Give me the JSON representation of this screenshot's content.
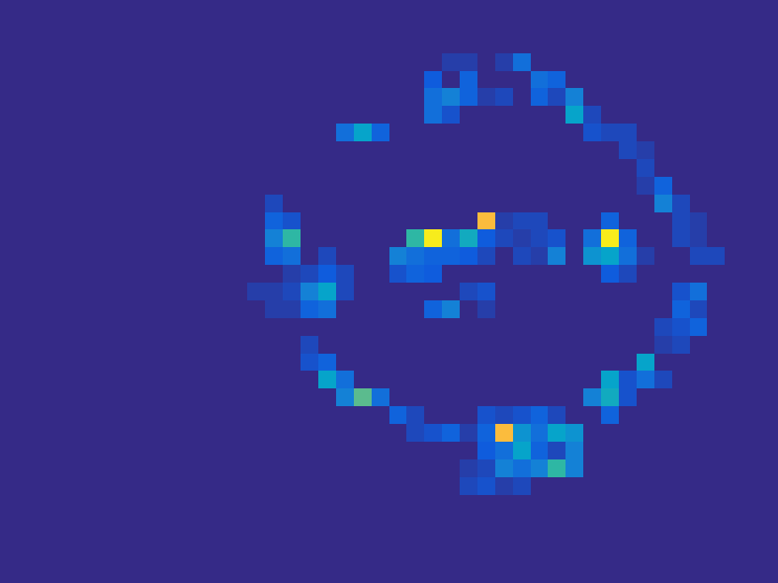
{
  "chart_data": {
    "type": "heatmap",
    "tick_labels": false,
    "zlim": [
      0,
      1
    ],
    "cells": [
      [
        0,
        0,
        0,
        0,
        0,
        0,
        0,
        0,
        0,
        0,
        0,
        0,
        0,
        0,
        0,
        0,
        0,
        0,
        0,
        0,
        0,
        0,
        0,
        0,
        0,
        0,
        0,
        0,
        0,
        0,
        0,
        0,
        0,
        0,
        0,
        0,
        0,
        0,
        0,
        0,
        0,
        0,
        0,
        0
      ],
      [
        0,
        0,
        0,
        0,
        0,
        0,
        0,
        0,
        0,
        0,
        0,
        0,
        0,
        0,
        0,
        0,
        0,
        0,
        0,
        0,
        0,
        0,
        0,
        0,
        0,
        0,
        0,
        0,
        0,
        0,
        0,
        0,
        0,
        0,
        0,
        0,
        0,
        0,
        0,
        0,
        0,
        0,
        0,
        0
      ],
      [
        0,
        0,
        0,
        0,
        0,
        0,
        0,
        0,
        0,
        0,
        0,
        0,
        0,
        0,
        0,
        0,
        0,
        0,
        0,
        0,
        0,
        0,
        0,
        0,
        0,
        0,
        0,
        0,
        0,
        0,
        0,
        0,
        0,
        0,
        0,
        0,
        0,
        0,
        0,
        0,
        0,
        0,
        0,
        0
      ],
      [
        0,
        0,
        0,
        0,
        0,
        0,
        0,
        0,
        0,
        0,
        0,
        0,
        0,
        0,
        0,
        0,
        0,
        0,
        0,
        0,
        0,
        0,
        0,
        0,
        0,
        0.04,
        0.04,
        0,
        0.04,
        0.15,
        0,
        0,
        0,
        0,
        0,
        0,
        0,
        0,
        0,
        0,
        0,
        0,
        0,
        0
      ],
      [
        0,
        0,
        0,
        0,
        0,
        0,
        0,
        0,
        0,
        0,
        0,
        0,
        0,
        0,
        0,
        0,
        0,
        0,
        0,
        0,
        0,
        0,
        0,
        0,
        0.1,
        0,
        0.12,
        0,
        0,
        0,
        0.15,
        0.12,
        0,
        0,
        0,
        0,
        0,
        0,
        0,
        0,
        0,
        0,
        0,
        0
      ],
      [
        0,
        0,
        0,
        0,
        0,
        0,
        0,
        0,
        0,
        0,
        0,
        0,
        0,
        0,
        0,
        0,
        0,
        0,
        0,
        0,
        0,
        0,
        0,
        0,
        0.15,
        0.2,
        0.12,
        0.04,
        0.06,
        0,
        0.12,
        0.06,
        0.2,
        0,
        0,
        0,
        0,
        0,
        0,
        0,
        0,
        0,
        0,
        0
      ],
      [
        0,
        0,
        0,
        0,
        0,
        0,
        0,
        0,
        0,
        0,
        0,
        0,
        0,
        0,
        0,
        0,
        0,
        0,
        0,
        0,
        0,
        0,
        0,
        0,
        0.15,
        0.08,
        0,
        0,
        0,
        0,
        0,
        0,
        0.3,
        0.06,
        0,
        0,
        0,
        0,
        0,
        0,
        0,
        0,
        0,
        0
      ],
      [
        0,
        0,
        0,
        0,
        0,
        0,
        0,
        0,
        0,
        0,
        0,
        0,
        0,
        0,
        0,
        0,
        0,
        0,
        0,
        0.15,
        0.3,
        0.12,
        0,
        0,
        0,
        0,
        0,
        0,
        0,
        0,
        0,
        0,
        0,
        0.08,
        0.06,
        0.06,
        0,
        0,
        0,
        0,
        0,
        0,
        0,
        0
      ],
      [
        0,
        0,
        0,
        0,
        0,
        0,
        0,
        0,
        0,
        0,
        0,
        0,
        0,
        0,
        0,
        0,
        0,
        0,
        0,
        0,
        0,
        0,
        0,
        0,
        0,
        0,
        0,
        0,
        0,
        0,
        0,
        0,
        0,
        0,
        0,
        0.06,
        0.04,
        0,
        0,
        0,
        0,
        0,
        0,
        0
      ],
      [
        0,
        0,
        0,
        0,
        0,
        0,
        0,
        0,
        0,
        0,
        0,
        0,
        0,
        0,
        0,
        0,
        0,
        0,
        0,
        0,
        0,
        0,
        0,
        0,
        0,
        0,
        0,
        0,
        0,
        0,
        0,
        0,
        0,
        0,
        0,
        0,
        0.06,
        0,
        0,
        0,
        0,
        0,
        0,
        0
      ],
      [
        0,
        0,
        0,
        0,
        0,
        0,
        0,
        0,
        0,
        0,
        0,
        0,
        0,
        0,
        0,
        0,
        0,
        0,
        0,
        0,
        0,
        0,
        0,
        0,
        0,
        0,
        0,
        0,
        0,
        0,
        0,
        0,
        0,
        0,
        0,
        0,
        0.04,
        0.12,
        0,
        0,
        0,
        0,
        0,
        0
      ],
      [
        0,
        0,
        0,
        0,
        0,
        0,
        0,
        0,
        0,
        0,
        0,
        0,
        0,
        0,
        0,
        0.06,
        0,
        0,
        0,
        0,
        0,
        0,
        0,
        0,
        0,
        0,
        0,
        0,
        0,
        0,
        0,
        0,
        0,
        0,
        0,
        0,
        0,
        0.2,
        0.06,
        0,
        0,
        0,
        0,
        0
      ],
      [
        0,
        0,
        0,
        0,
        0,
        0,
        0,
        0,
        0,
        0,
        0,
        0,
        0,
        0,
        0,
        0.12,
        0.08,
        0,
        0,
        0,
        0,
        0,
        0,
        0,
        0,
        0,
        0,
        0.8,
        0.04,
        0.06,
        0.06,
        0,
        0,
        0,
        0.12,
        0,
        0,
        0,
        0.06,
        0.04,
        0,
        0,
        0,
        0
      ],
      [
        0,
        0,
        0,
        0,
        0,
        0,
        0,
        0,
        0,
        0,
        0,
        0,
        0,
        0,
        0,
        0.2,
        0.4,
        0,
        0,
        0,
        0,
        0,
        0,
        0.4,
        0.95,
        0.15,
        0.33,
        0.1,
        0.06,
        0.04,
        0.06,
        0.08,
        0,
        0.15,
        0.95,
        0.12,
        0,
        0,
        0.06,
        0.04,
        0,
        0,
        0,
        0
      ],
      [
        0,
        0,
        0,
        0,
        0,
        0,
        0,
        0,
        0,
        0,
        0,
        0,
        0,
        0,
        0,
        0.12,
        0.15,
        0,
        0.06,
        0,
        0,
        0,
        0.2,
        0.15,
        0.12,
        0.12,
        0.1,
        0.06,
        0,
        0.06,
        0.04,
        0.2,
        0,
        0.25,
        0.3,
        0.15,
        0.04,
        0,
        0,
        0.06,
        0.06,
        0,
        0,
        0
      ],
      [
        0,
        0,
        0,
        0,
        0,
        0,
        0,
        0,
        0,
        0,
        0,
        0,
        0,
        0,
        0,
        0,
        0.04,
        0.06,
        0.1,
        0.06,
        0,
        0,
        0.08,
        0.12,
        0.1,
        0,
        0,
        0,
        0,
        0,
        0,
        0,
        0,
        0,
        0.1,
        0.06,
        0,
        0,
        0,
        0,
        0,
        0,
        0,
        0
      ],
      [
        0,
        0,
        0,
        0,
        0,
        0,
        0,
        0,
        0,
        0,
        0,
        0,
        0,
        0,
        0.04,
        0.04,
        0.06,
        0.2,
        0.3,
        0.06,
        0,
        0,
        0,
        0,
        0,
        0,
        0.06,
        0.08,
        0,
        0,
        0,
        0,
        0,
        0,
        0,
        0,
        0,
        0,
        0.08,
        0.15,
        0,
        0,
        0,
        0
      ],
      [
        0,
        0,
        0,
        0,
        0,
        0,
        0,
        0,
        0,
        0,
        0,
        0,
        0,
        0,
        0,
        0.04,
        0.04,
        0.12,
        0.15,
        0,
        0,
        0,
        0,
        0,
        0.12,
        0.2,
        0,
        0.04,
        0,
        0,
        0,
        0,
        0,
        0,
        0,
        0,
        0,
        0,
        0.12,
        0.06,
        0,
        0,
        0,
        0
      ],
      [
        0,
        0,
        0,
        0,
        0,
        0,
        0,
        0,
        0,
        0,
        0,
        0,
        0,
        0,
        0,
        0,
        0,
        0,
        0,
        0,
        0,
        0,
        0,
        0,
        0,
        0,
        0,
        0,
        0,
        0,
        0,
        0,
        0,
        0,
        0,
        0,
        0,
        0.06,
        0.08,
        0.12,
        0,
        0,
        0,
        0
      ],
      [
        0,
        0,
        0,
        0,
        0,
        0,
        0,
        0,
        0,
        0,
        0,
        0,
        0,
        0,
        0,
        0,
        0,
        0.06,
        0,
        0,
        0,
        0,
        0,
        0,
        0,
        0,
        0,
        0,
        0,
        0,
        0,
        0,
        0,
        0,
        0,
        0,
        0,
        0.04,
        0.06,
        0,
        0,
        0,
        0,
        0
      ],
      [
        0,
        0,
        0,
        0,
        0,
        0,
        0,
        0,
        0,
        0,
        0,
        0,
        0,
        0,
        0,
        0,
        0,
        0.08,
        0.12,
        0,
        0,
        0,
        0,
        0,
        0,
        0,
        0,
        0,
        0,
        0,
        0,
        0,
        0,
        0,
        0,
        0,
        0.3,
        0,
        0,
        0,
        0,
        0,
        0,
        0
      ],
      [
        0,
        0,
        0,
        0,
        0,
        0,
        0,
        0,
        0,
        0,
        0,
        0,
        0,
        0,
        0,
        0,
        0,
        0,
        0.3,
        0.15,
        0,
        0,
        0,
        0,
        0,
        0,
        0,
        0,
        0,
        0,
        0,
        0,
        0,
        0,
        0.3,
        0.08,
        0.15,
        0.06,
        0,
        0,
        0,
        0,
        0,
        0
      ],
      [
        0,
        0,
        0,
        0,
        0,
        0,
        0,
        0,
        0,
        0,
        0,
        0,
        0,
        0,
        0,
        0,
        0,
        0,
        0,
        0.2,
        0.45,
        0.15,
        0,
        0,
        0,
        0,
        0,
        0,
        0,
        0,
        0,
        0,
        0,
        0.2,
        0.33,
        0.08,
        0,
        0,
        0,
        0,
        0,
        0,
        0,
        0
      ],
      [
        0,
        0,
        0,
        0,
        0,
        0,
        0,
        0,
        0,
        0,
        0,
        0,
        0,
        0,
        0,
        0,
        0,
        0,
        0,
        0,
        0,
        0,
        0.12,
        0.06,
        0,
        0,
        0,
        0.08,
        0.06,
        0.08,
        0.12,
        0.06,
        0,
        0,
        0.12,
        0,
        0,
        0,
        0,
        0,
        0,
        0,
        0,
        0
      ],
      [
        0,
        0,
        0,
        0,
        0,
        0,
        0,
        0,
        0,
        0,
        0,
        0,
        0,
        0,
        0,
        0,
        0,
        0,
        0,
        0,
        0,
        0,
        0,
        0.06,
        0.08,
        0.12,
        0.04,
        0.12,
        0.8,
        0.25,
        0.15,
        0.3,
        0.25,
        0,
        0,
        0,
        0,
        0,
        0,
        0,
        0,
        0,
        0,
        0
      ],
      [
        0,
        0,
        0,
        0,
        0,
        0,
        0,
        0,
        0,
        0,
        0,
        0,
        0,
        0,
        0,
        0,
        0,
        0,
        0,
        0,
        0,
        0,
        0,
        0,
        0,
        0,
        0,
        0.1,
        0.15,
        0.3,
        0.12,
        0.06,
        0.2,
        0,
        0,
        0,
        0,
        0,
        0,
        0,
        0,
        0,
        0,
        0
      ],
      [
        0,
        0,
        0,
        0,
        0,
        0,
        0,
        0,
        0,
        0,
        0,
        0,
        0,
        0,
        0,
        0,
        0,
        0,
        0,
        0,
        0,
        0,
        0,
        0,
        0,
        0,
        0.04,
        0.06,
        0.2,
        0.15,
        0.2,
        0.4,
        0.2,
        0,
        0,
        0,
        0,
        0,
        0,
        0,
        0,
        0,
        0,
        0
      ],
      [
        0,
        0,
        0,
        0,
        0,
        0,
        0,
        0,
        0,
        0,
        0,
        0,
        0,
        0,
        0,
        0,
        0,
        0,
        0,
        0,
        0,
        0,
        0,
        0,
        0,
        0,
        0.06,
        0.08,
        0.04,
        0.06,
        0,
        0,
        0,
        0,
        0,
        0,
        0,
        0,
        0,
        0,
        0,
        0,
        0,
        0
      ],
      [
        0,
        0,
        0,
        0,
        0,
        0,
        0,
        0,
        0,
        0,
        0,
        0,
        0,
        0,
        0,
        0,
        0,
        0,
        0,
        0,
        0,
        0,
        0,
        0,
        0,
        0,
        0,
        0,
        0,
        0,
        0,
        0,
        0,
        0,
        0,
        0,
        0,
        0,
        0,
        0,
        0,
        0,
        0,
        0
      ],
      [
        0,
        0,
        0,
        0,
        0,
        0,
        0,
        0,
        0,
        0,
        0,
        0,
        0,
        0,
        0,
        0,
        0,
        0,
        0,
        0,
        0,
        0,
        0,
        0,
        0,
        0,
        0,
        0,
        0,
        0,
        0,
        0,
        0,
        0,
        0,
        0,
        0,
        0,
        0,
        0,
        0,
        0,
        0,
        0
      ],
      [
        0,
        0,
        0,
        0,
        0,
        0,
        0,
        0,
        0,
        0,
        0,
        0,
        0,
        0,
        0,
        0,
        0,
        0,
        0,
        0,
        0,
        0,
        0,
        0,
        0,
        0,
        0,
        0,
        0,
        0,
        0,
        0,
        0,
        0,
        0,
        0,
        0,
        0,
        0,
        0,
        0,
        0,
        0,
        0
      ],
      [
        0,
        0,
        0,
        0,
        0,
        0,
        0,
        0,
        0,
        0,
        0,
        0,
        0,
        0,
        0,
        0,
        0,
        0,
        0,
        0,
        0,
        0,
        0,
        0,
        0,
        0,
        0,
        0,
        0,
        0,
        0,
        0,
        0,
        0,
        0,
        0,
        0,
        0,
        0,
        0,
        0,
        0,
        0,
        0
      ],
      [
        0,
        0,
        0,
        0,
        0,
        0,
        0,
        0,
        0,
        0,
        0,
        0,
        0,
        0,
        0,
        0,
        0,
        0,
        0,
        0,
        0,
        0,
        0,
        0,
        0,
        0,
        0,
        0,
        0,
        0,
        0,
        0,
        0,
        0,
        0,
        0,
        0,
        0,
        0,
        0,
        0,
        0,
        0,
        0
      ]
    ]
  }
}
